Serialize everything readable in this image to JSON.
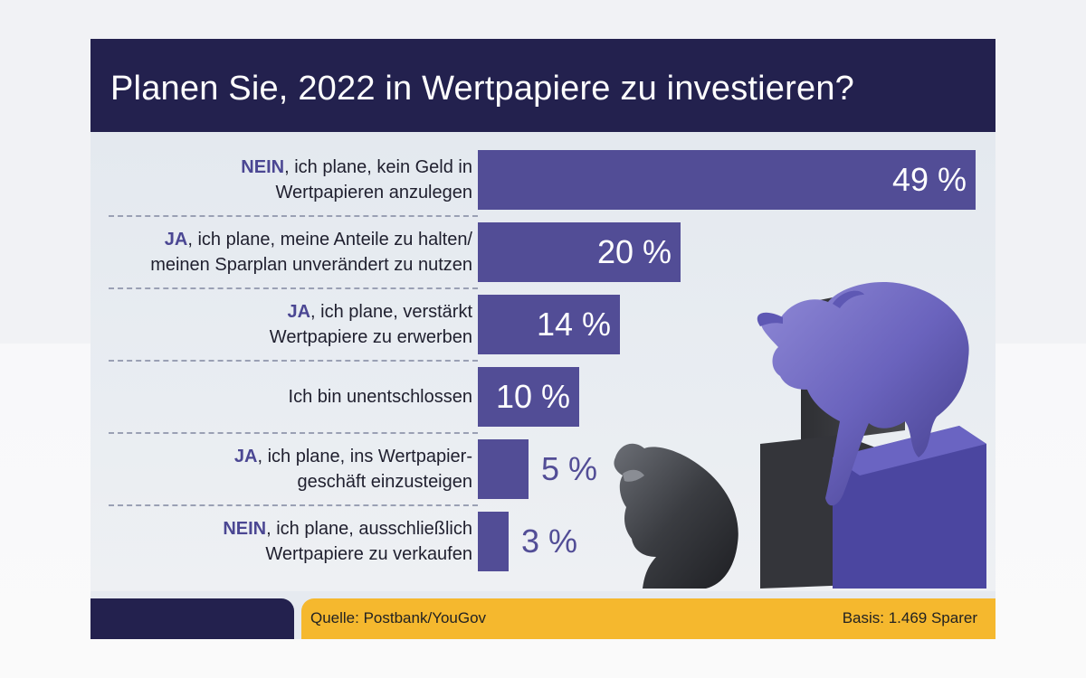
{
  "header": {
    "title": "Planen Sie, 2022 in Wertpapiere zu investieren?"
  },
  "chart_data": {
    "type": "bar",
    "orientation": "horizontal",
    "title": "Planen Sie, 2022 in Wertpapiere zu investieren?",
    "unit": "%",
    "categories": [
      {
        "keyword": "NEIN",
        "line1_rest": ", ich plane, kein Geld in",
        "line2": "Wertpapieren anzulegen"
      },
      {
        "keyword": "JA",
        "line1_rest": ", ich plane, meine Anteile zu halten/",
        "line2": "meinen Sparplan unverändert zu nutzen"
      },
      {
        "keyword": "JA",
        "line1_rest": ", ich plane, verstärkt",
        "line2": "Wertpapiere zu erwerben"
      },
      {
        "keyword": "",
        "line1_rest": "Ich bin unentschlossen",
        "line2": ""
      },
      {
        "keyword": "JA",
        "line1_rest": ", ich plane, ins Wertpapier-",
        "line2": "geschäft einzusteigen"
      },
      {
        "keyword": "NEIN",
        "line1_rest": ", ich plane, ausschließlich",
        "line2": "Wertpapiere zu verkaufen"
      }
    ],
    "values": [
      49,
      20,
      14,
      10,
      5,
      3
    ],
    "value_labels": [
      "49 %",
      "20 %",
      "14 %",
      "10 %",
      "5 %",
      "3 %"
    ],
    "xlim": [
      0,
      49
    ],
    "bar_color": "#524d96",
    "keyword_color": "#4b4793"
  },
  "footer": {
    "source": "Quelle: Postbank/YouGov",
    "basis": "Basis: 1.469 Sparer"
  },
  "colors": {
    "header_bg": "#23214e",
    "footer_accent": "#f5b82e",
    "panel_bg": "#e6eaf0"
  }
}
